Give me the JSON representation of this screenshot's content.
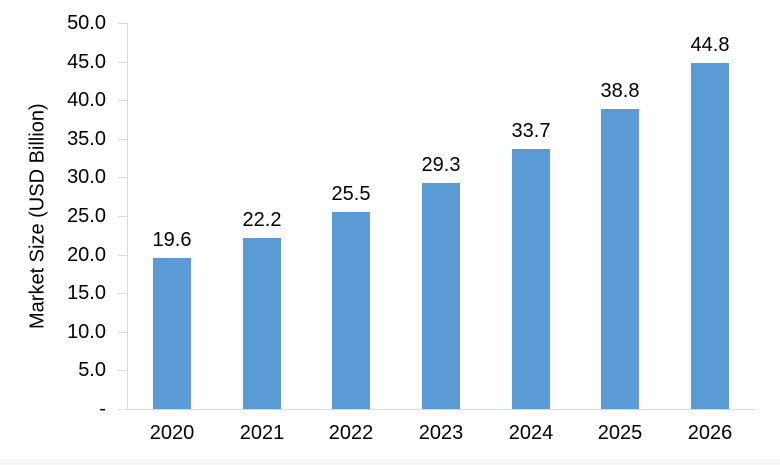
{
  "chart_data": {
    "type": "bar",
    "title": "",
    "xlabel": "",
    "ylabel": "Market Size (USD Billion)",
    "categories": [
      "2020",
      "2021",
      "2022",
      "2023",
      "2024",
      "2025",
      "2026"
    ],
    "values": [
      19.6,
      22.2,
      25.5,
      29.3,
      33.7,
      38.8,
      44.8
    ],
    "value_labels": [
      "19.6",
      "22.2",
      "25.5",
      "29.3",
      "33.7",
      "38.8",
      "44.8"
    ],
    "ylim": [
      0,
      50
    ],
    "ytick_step": 5,
    "ytick_labels_top_to_bottom": [
      "50.0",
      "45.0",
      "40.0",
      "35.0",
      "30.0",
      "25.0",
      "20.0",
      "15.0",
      "10.0",
      "5.0",
      "-"
    ],
    "grid": false,
    "legend": "none",
    "colors": {
      "bar": "#5B9BD5",
      "axis": "#D9D9D9",
      "text": "#000000",
      "background": "#FFFFFF"
    }
  }
}
